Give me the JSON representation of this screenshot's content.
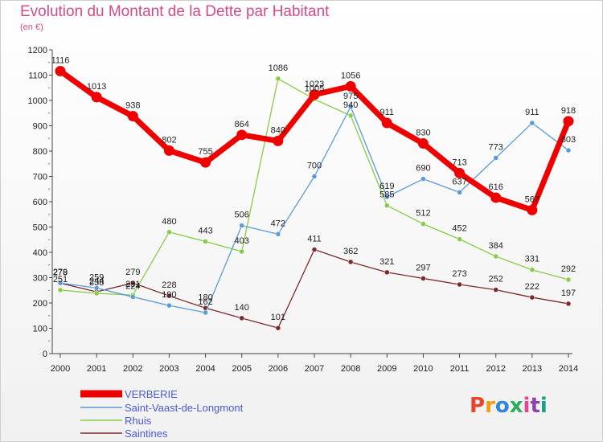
{
  "title": "Evolution du Montant de la Dette par Habitant",
  "subtitle": "(en €)",
  "logo": "Proxiti",
  "chart_data": {
    "type": "line",
    "x": [
      2000,
      2001,
      2002,
      2003,
      2004,
      2005,
      2006,
      2007,
      2008,
      2009,
      2010,
      2011,
      2012,
      2013,
      2014
    ],
    "ylim": [
      0,
      1200
    ],
    "yticks": [
      0,
      100,
      200,
      300,
      400,
      500,
      600,
      700,
      800,
      900,
      1000,
      1100,
      1200
    ],
    "grid": false,
    "legend_position": "bottom-left",
    "series": [
      {
        "name": "VERBERIE",
        "color": "#ee0000",
        "values": [
          1116,
          1013,
          938,
          802,
          755,
          864,
          840,
          1023,
          1056,
          911,
          830,
          713,
          616,
          567,
          918
        ]
      },
      {
        "name": "Saint-Vaast-de-Longmont",
        "color": "#5b9bd5",
        "values": [
          279,
          259,
          224,
          190,
          162,
          506,
          472,
          700,
          975,
          619,
          690,
          637,
          773,
          911,
          803
        ]
      },
      {
        "name": "Rhuis",
        "color": "#88cc44",
        "values": [
          251,
          238,
          231,
          480,
          443,
          403,
          1086,
          1005,
          940,
          585,
          512,
          452,
          384,
          331,
          292
        ]
      },
      {
        "name": "Saintines",
        "color": "#7a2a2a",
        "values": [
          278,
          244,
          279,
          228,
          180,
          140,
          101,
          411,
          362,
          321,
          297,
          273,
          252,
          222,
          197
        ]
      }
    ]
  }
}
